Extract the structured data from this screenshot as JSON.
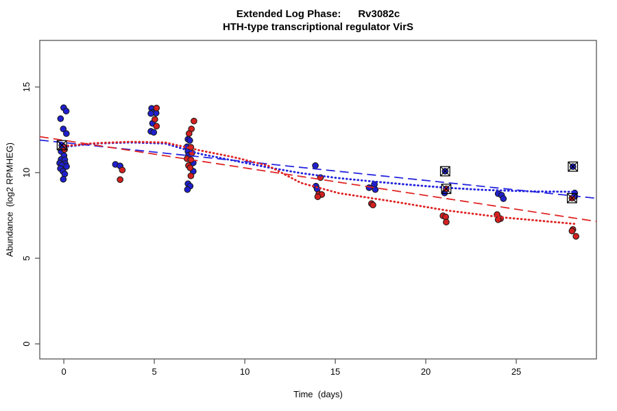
{
  "title": {
    "line1": "Extended Log Phase:      Rv3082c",
    "line2": "HTH-type transcriptional regulator VirS"
  },
  "chart_data": {
    "type": "scatter",
    "xlabel": "Time  (days)",
    "ylabel": "Abundance  (log2 RPMHEG)",
    "xticks": [
      0,
      5,
      10,
      15,
      20,
      25
    ],
    "yticks": [
      0,
      5,
      10,
      15
    ],
    "xlim": [
      -1.33,
      29.43
    ],
    "ylim": [
      -0.88,
      17.72
    ],
    "grid": false,
    "legend": "none",
    "colors": {
      "blue_point": "#1f1fcf",
      "red_point": "#d42020",
      "blue_line": "#2323e0",
      "red_line": "#e02323",
      "point_border": "#1a1a1a",
      "flag_marker": "#000000",
      "axis_box": "#555555",
      "text": "#000000"
    },
    "series": [
      {
        "name": "condition-blue-points",
        "role": "points",
        "color": "#1f1fcf",
        "points": [
          [
            -0.01,
            13.79
          ],
          [
            0.13,
            13.59
          ],
          [
            -0.18,
            13.15
          ],
          [
            -0.03,
            12.55
          ],
          [
            0.14,
            12.28
          ],
          [
            -0.04,
            11.52
          ],
          [
            -0.15,
            11.24
          ],
          [
            0.01,
            10.99
          ],
          [
            -0.15,
            10.77
          ],
          [
            0.05,
            10.75
          ],
          [
            -0.23,
            10.56
          ],
          [
            0.08,
            10.52
          ],
          [
            -0.11,
            10.44
          ],
          [
            0.15,
            10.36
          ],
          [
            -0.19,
            10.24
          ],
          [
            -0.05,
            10.08
          ],
          [
            0.05,
            9.92
          ],
          [
            -0.03,
            9.61
          ],
          [
            2.85,
            10.48
          ],
          [
            3.11,
            10.39
          ],
          [
            4.85,
            13.75
          ],
          [
            4.9,
            13.51
          ],
          [
            5.1,
            13.48
          ],
          [
            4.81,
            13.45
          ],
          [
            4.9,
            12.88
          ],
          [
            4.81,
            12.41
          ],
          [
            4.97,
            12.35
          ],
          [
            6.86,
            11.95
          ],
          [
            6.96,
            11.88
          ],
          [
            6.81,
            11.51
          ],
          [
            6.86,
            11.24
          ],
          [
            6.89,
            11.01
          ],
          [
            7.15,
            10.57
          ],
          [
            7.15,
            10.08
          ],
          [
            6.86,
            9.35
          ],
          [
            6.98,
            9.21
          ],
          [
            6.83,
            9.01
          ],
          [
            13.9,
            10.41
          ],
          [
            13.93,
            9.21
          ],
          [
            14.0,
            9.04
          ],
          [
            17.16,
            9.31
          ],
          [
            16.87,
            9.12
          ],
          [
            17.21,
            9.01
          ],
          [
            21.04,
            8.81
          ],
          [
            24.0,
            8.77
          ],
          [
            24.19,
            8.68
          ],
          [
            24.29,
            8.48
          ],
          [
            28.23,
            8.81
          ],
          [
            28.23,
            8.61
          ]
        ]
      },
      {
        "name": "condition-red-points",
        "role": "points",
        "color": "#d42020",
        "points": [
          [
            0.04,
            11.35
          ],
          [
            3.23,
            10.15
          ],
          [
            3.11,
            9.59
          ],
          [
            5.12,
            13.77
          ],
          [
            5.03,
            13.11
          ],
          [
            5.12,
            12.71
          ],
          [
            7.19,
            13.01
          ],
          [
            7.05,
            12.55
          ],
          [
            6.92,
            12.28
          ],
          [
            7.02,
            11.48
          ],
          [
            7.08,
            11.15
          ],
          [
            6.81,
            10.81
          ],
          [
            7.02,
            10.75
          ],
          [
            6.89,
            10.41
          ],
          [
            6.98,
            10.28
          ],
          [
            7.02,
            9.81
          ],
          [
            14.18,
            9.71
          ],
          [
            14.09,
            8.75
          ],
          [
            14.25,
            8.72
          ],
          [
            14.03,
            8.59
          ],
          [
            17.0,
            8.19
          ],
          [
            17.08,
            8.11
          ],
          [
            20.95,
            7.48
          ],
          [
            21.1,
            7.41
          ],
          [
            21.13,
            7.11
          ],
          [
            23.94,
            7.55
          ],
          [
            24.13,
            7.31
          ],
          [
            24.0,
            7.25
          ],
          [
            28.13,
            6.68
          ],
          [
            28.08,
            6.59
          ],
          [
            28.3,
            6.28
          ]
        ]
      },
      {
        "name": "flagged-blue-points",
        "role": "flagged",
        "color": "#1f1fcf",
        "marker": "square-x",
        "points": [
          [
            -0.11,
            11.6
          ],
          [
            21.07,
            10.08
          ],
          [
            28.13,
            10.35
          ]
        ]
      },
      {
        "name": "flagged-red-points",
        "role": "flagged",
        "color": "#d42020",
        "marker": "square-x",
        "points": [
          [
            21.13,
            9.05
          ],
          [
            28.08,
            8.51
          ]
        ]
      },
      {
        "name": "blue-linear-trend",
        "role": "line",
        "style": "dashed",
        "color": "#2323e0",
        "points": [
          [
            -1.33,
            11.9
          ],
          [
            29.43,
            8.5
          ]
        ]
      },
      {
        "name": "red-linear-trend",
        "role": "line",
        "style": "dashed",
        "color": "#e02323",
        "points": [
          [
            -1.33,
            12.1
          ],
          [
            29.43,
            7.15
          ]
        ]
      },
      {
        "name": "blue-loess-trend",
        "role": "line",
        "style": "dotted",
        "color": "#2323e0",
        "points": [
          [
            0,
            11.5
          ],
          [
            1.7,
            11.7
          ],
          [
            3.7,
            11.76
          ],
          [
            5.6,
            11.7
          ],
          [
            7.5,
            11.1
          ],
          [
            9.4,
            10.7
          ],
          [
            11.3,
            10.3
          ],
          [
            13.1,
            9.97
          ],
          [
            15,
            9.7
          ],
          [
            16.9,
            9.5
          ],
          [
            19,
            9.3
          ],
          [
            21.1,
            9.12
          ],
          [
            23,
            9.0
          ],
          [
            24.1,
            8.96
          ],
          [
            26,
            8.9
          ],
          [
            28.3,
            8.88
          ]
        ]
      },
      {
        "name": "red-loess-trend",
        "role": "line",
        "style": "dotted",
        "color": "#e02323",
        "points": [
          [
            0,
            11.55
          ],
          [
            1.7,
            11.72
          ],
          [
            3.7,
            11.8
          ],
          [
            5.6,
            11.76
          ],
          [
            7.5,
            11.3
          ],
          [
            9.4,
            10.9
          ],
          [
            11.3,
            10.4
          ],
          [
            13.1,
            9.4
          ],
          [
            15.2,
            8.8
          ],
          [
            18.4,
            8.28
          ],
          [
            21.1,
            7.8
          ],
          [
            24.1,
            7.4
          ],
          [
            28.3,
            7.0
          ]
        ]
      }
    ]
  }
}
